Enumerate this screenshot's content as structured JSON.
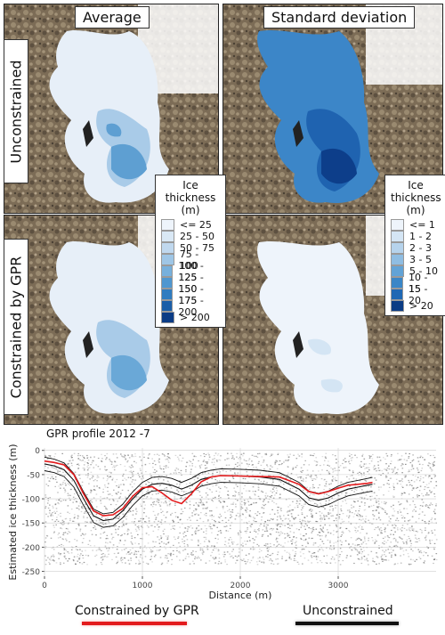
{
  "columns": [
    "Average",
    "Standard deviation"
  ],
  "rows": [
    "Unconstrained",
    "Constrained by GPR"
  ],
  "legend_mean": {
    "title": "Ice thickness (m)",
    "items": [
      "<= 25",
      "25 - 50",
      "50 - 75",
      "75 - 100",
      "100 - 125",
      "125 - 150",
      "150 - 175",
      "175 - 200",
      "> 200"
    ],
    "colors": [
      "#eef4fb",
      "#d9e8f5",
      "#c0d8ee",
      "#9fc6e6",
      "#77b0dc",
      "#4f97d0",
      "#2f7cc0",
      "#1a5ea8",
      "#0b3c85"
    ]
  },
  "legend_sd": {
    "title": "Ice thickness (m)",
    "items": [
      "<= 1",
      "1 - 2",
      "2 - 3",
      "3 - 5",
      "5 - 10",
      "10 - 15",
      "15 - 20",
      "> 20"
    ],
    "colors": [
      "#eef4fb",
      "#d4e5f4",
      "#b6d3ec",
      "#8fbde2",
      "#62a3d6",
      "#3a86c7",
      "#1f68b4",
      "#0b3c85"
    ]
  },
  "chart_data": {
    "type": "line",
    "title": "GPR profile 2012 -7",
    "xlabel": "Distance (m)",
    "ylabel": "Estimated ice thickness (m)",
    "xlim": [
      0,
      4000
    ],
    "ylim": [
      -260,
      5
    ],
    "xticks": [
      0,
      1000,
      2000,
      3000
    ],
    "yticks": [
      0,
      -50,
      -100,
      -150,
      -200,
      -250
    ],
    "series": [
      {
        "name": "Constrained by GPR",
        "color": "#e31a1c",
        "x": [
          0,
          100,
          200,
          300,
          400,
          500,
          600,
          700,
          800,
          900,
          1000,
          1100,
          1200,
          1300,
          1400,
          1500,
          1600,
          1700,
          1800,
          2000,
          2200,
          2400,
          2600,
          2700,
          2800,
          2900,
          3000,
          3100,
          3200,
          3300,
          3350
        ],
        "y": [
          -22,
          -25,
          -30,
          -50,
          -90,
          -125,
          -135,
          -133,
          -120,
          -95,
          -77,
          -75,
          -88,
          -103,
          -110,
          -90,
          -65,
          -55,
          -52,
          -53,
          -54,
          -55,
          -70,
          -85,
          -90,
          -85,
          -78,
          -72,
          -70,
          -68,
          -66
        ]
      },
      {
        "name": "Unconstrained",
        "color": "#111111",
        "x": [
          0,
          100,
          200,
          300,
          400,
          500,
          600,
          700,
          800,
          900,
          1000,
          1100,
          1200,
          1300,
          1400,
          1500,
          1600,
          1700,
          1800,
          2000,
          2200,
          2400,
          2600,
          2700,
          2800,
          2900,
          3000,
          3100,
          3200,
          3300,
          3350
        ],
        "y": [
          -28,
          -32,
          -40,
          -62,
          -100,
          -135,
          -145,
          -142,
          -125,
          -100,
          -80,
          -70,
          -68,
          -72,
          -80,
          -72,
          -60,
          -55,
          -52,
          -53,
          -55,
          -60,
          -80,
          -98,
          -103,
          -98,
          -88,
          -80,
          -76,
          -72,
          -70
        ]
      }
    ]
  },
  "bottom_legend": [
    "Constrained by GPR",
    "Unconstrained"
  ]
}
